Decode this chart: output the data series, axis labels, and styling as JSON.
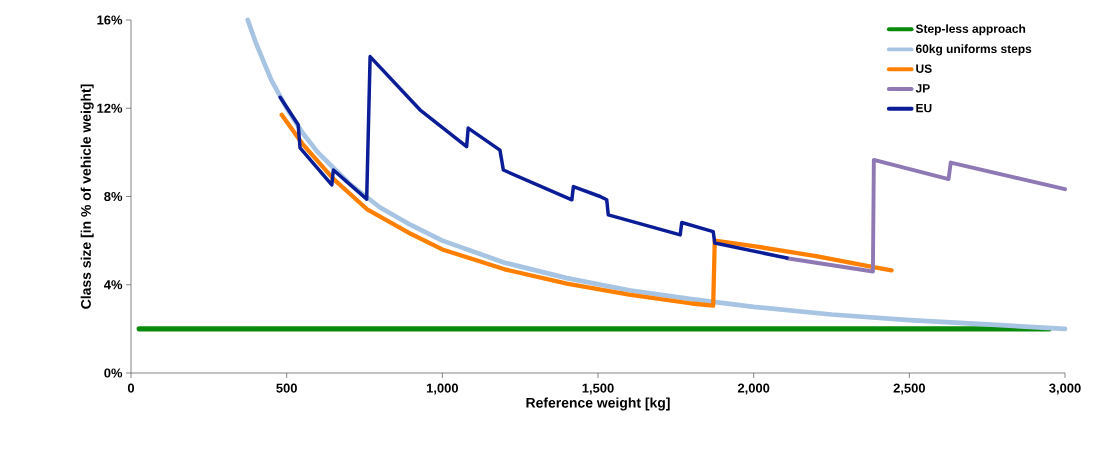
{
  "chart_data": {
    "type": "line",
    "xlabel": "Reference weight [kg]",
    "ylabel": "Class size [in % of vehicle weight]",
    "xlim": [
      0,
      3000
    ],
    "ylim": [
      0,
      16
    ],
    "xticks": [
      0,
      500,
      {
        "value": 1000,
        "label": "1,000"
      },
      {
        "value": 1500,
        "label": "1,500"
      },
      {
        "value": 2000,
        "label": "2,000"
      },
      {
        "value": 2500,
        "label": "2,500"
      },
      {
        "value": 3000,
        "label": "3,000"
      }
    ],
    "yticks": [
      {
        "value": 0,
        "label": "0%"
      },
      {
        "value": 4,
        "label": "4%"
      },
      {
        "value": 8,
        "label": "8%"
      },
      {
        "value": 12,
        "label": "12%"
      },
      {
        "value": 16,
        "label": "16%"
      }
    ],
    "grid": false,
    "legend": "top right",
    "marker": "none",
    "line_style": "solid",
    "series": [
      {
        "name": "Step-less approach",
        "color": "#0a8a0a",
        "x": [
          26,
          2950
        ],
        "values": [
          2,
          2
        ]
      },
      {
        "name": "60kg uniforms steps",
        "color": "#a7c4e2",
        "x": [
          375,
          400,
          450,
          500,
          550,
          600,
          700,
          800,
          900,
          1000,
          1200,
          1400,
          1600,
          1800,
          2000,
          2250,
          2500,
          2750,
          3000
        ],
        "values": [
          16,
          15,
          13.3,
          12,
          10.9,
          10,
          8.6,
          7.5,
          6.7,
          6,
          5,
          4.3,
          3.75,
          3.35,
          3,
          2.65,
          2.4,
          2.2,
          2
        ]
      },
      {
        "name": "US",
        "color": "#ff8000",
        "x": [
          484,
          550,
          650,
          760,
          900,
          1000,
          1200,
          1400,
          1600,
          1800,
          1870,
          1875,
          2000,
          2200,
          2385,
          2443
        ],
        "values": [
          11.7,
          10.4,
          8.8,
          7.4,
          6.3,
          5.6,
          4.7,
          4.05,
          3.55,
          3.15,
          3.05,
          6.0,
          5.75,
          5.3,
          4.8,
          4.65
        ]
      },
      {
        "name": "JP",
        "color": "#8f79b4",
        "x": [
          2107,
          2383,
          2386,
          2626,
          2633,
          3000
        ],
        "values": [
          5.2,
          4.6,
          9.66,
          8.79,
          9.54,
          8.33
        ]
      },
      {
        "name": "EU",
        "color": "#0a1c96",
        "x": [
          479,
          537,
          543,
          645,
          650,
          757,
          768,
          928,
          1078,
          1083,
          1185,
          1196,
          1416,
          1421,
          1507,
          1528,
          1533,
          1764,
          1769,
          1870,
          1875,
          2107
        ],
        "values": [
          12.5,
          11.25,
          10.2,
          8.53,
          9.2,
          7.88,
          14.34,
          11.93,
          10.26,
          11.1,
          10.1,
          9.2,
          7.85,
          8.45,
          8.0,
          7.85,
          7.17,
          6.26,
          6.82,
          6.41,
          5.89,
          5.21
        ]
      }
    ]
  }
}
